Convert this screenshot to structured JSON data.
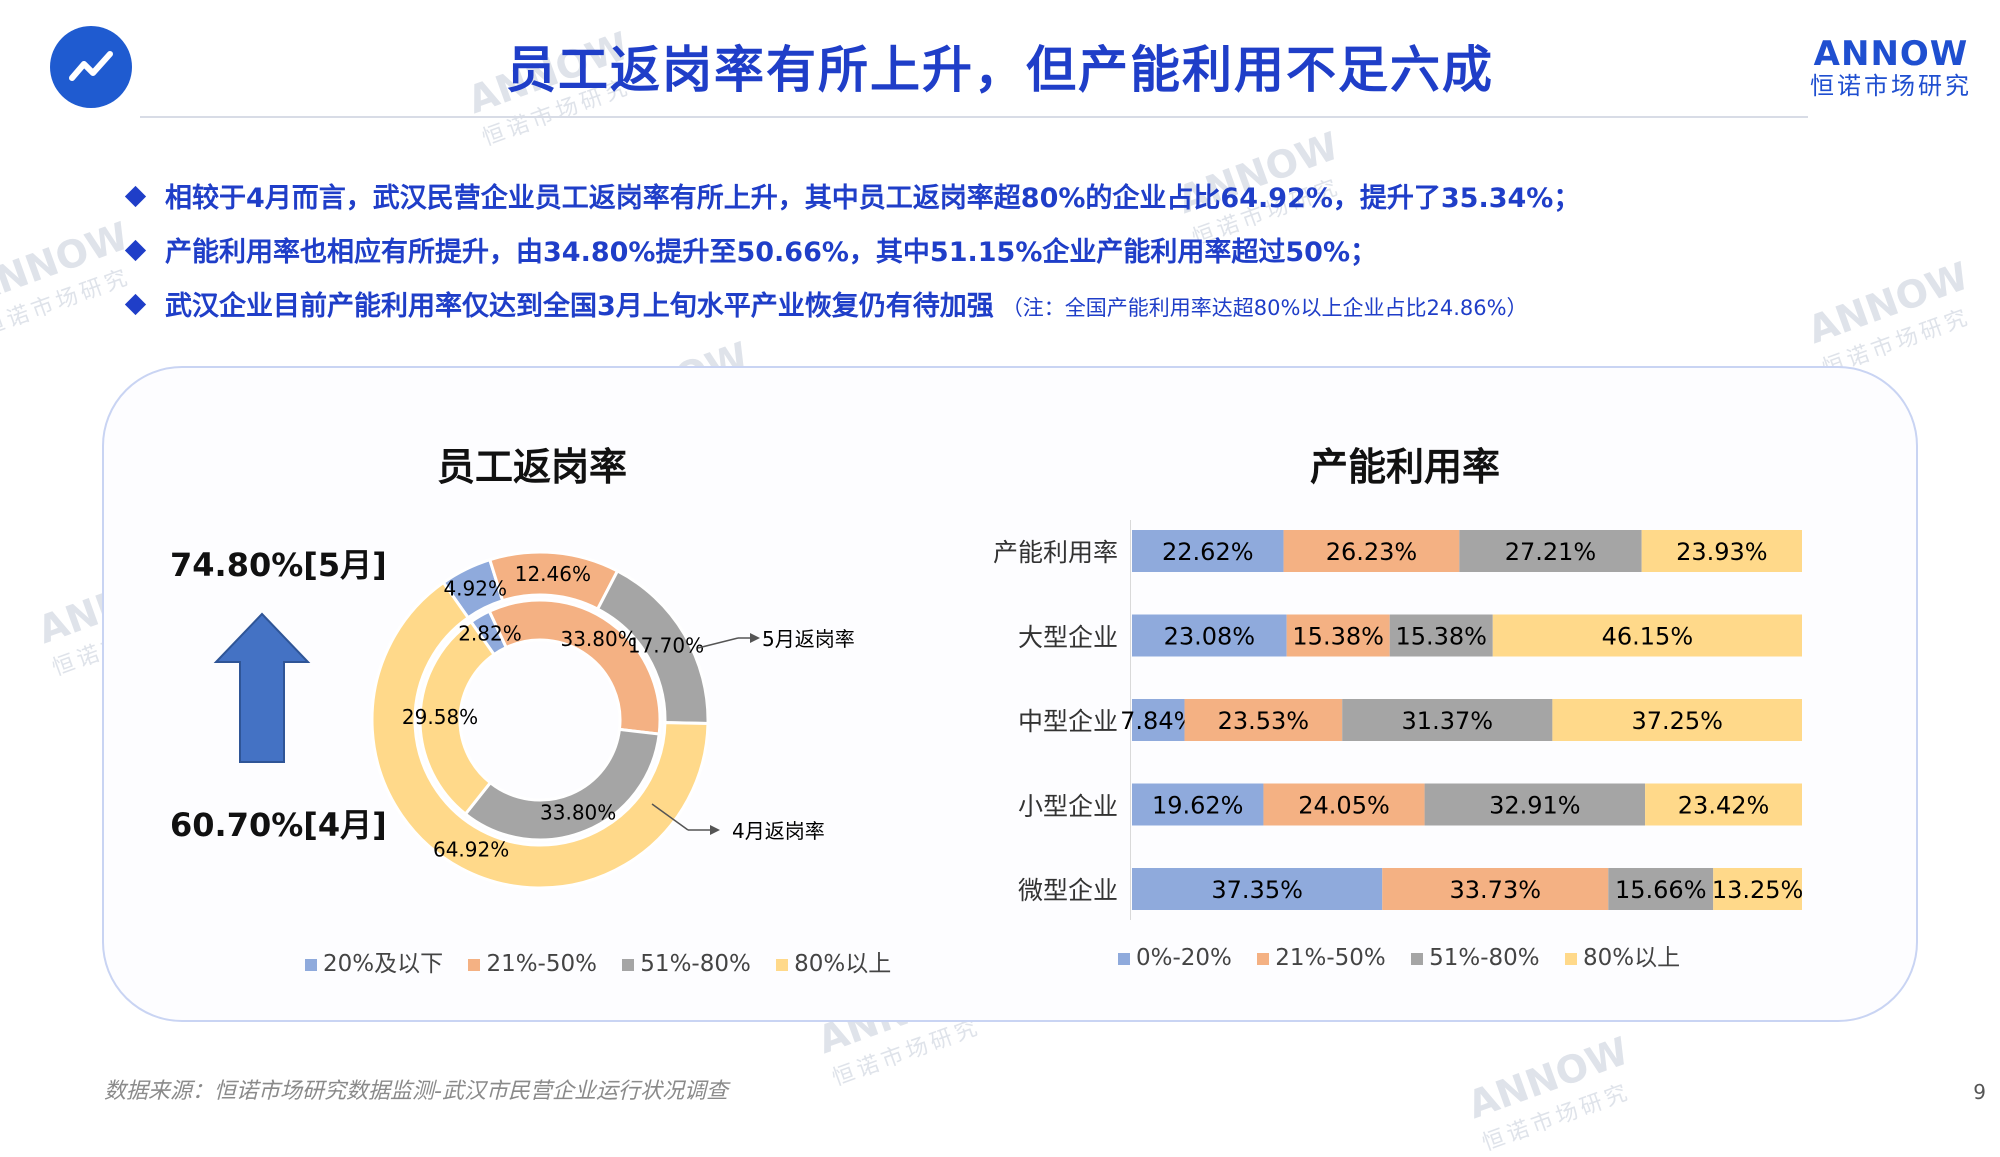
{
  "page": {
    "title": "员工返岗率有所上升，但产能利用不足六成",
    "brand_en": "ANNOW",
    "brand_cn": "恒诺市场研究",
    "page_number": "9",
    "source": "数据来源：恒诺市场研究数据监测-武汉市民营企业运行状况调查",
    "watermark_en": "ANNOW",
    "watermark_cn": "恒诺市场研究"
  },
  "bullets": [
    {
      "text": "相较于4月而言，武汉民营企业员工返岗率有所上升，其中员工返岗率超80%的企业占比64.92%，提升了35.34%；",
      "note": ""
    },
    {
      "text": "产能利用率也相应有所提升，由34.80%提升至50.66%，其中51.15%企业产能利用率超过50%；",
      "note": ""
    },
    {
      "text": "武汉企业目前产能利用率仅达到全国3月上旬水平产业恢复仍有待加强",
      "note": "（注：全国产能利用率达超80%以上企业占比24.86%）"
    }
  ],
  "colors": {
    "c1": "#8faadc",
    "c2": "#f4b183",
    "c3": "#a5a5a5",
    "c4": "#ffd98a",
    "accent": "#1f3ec8",
    "arrow": "#4472c4"
  },
  "chart_data": [
    {
      "type": "doughnut",
      "title": "员工返岗率",
      "legend": [
        "20%及以下",
        "21%-50%",
        "51%-80%",
        "80%以上"
      ],
      "series": [
        {
          "name": "5月返岗率",
          "values": [
            4.92,
            12.46,
            17.7,
            64.92
          ],
          "labels": [
            "4.92%",
            "12.46%",
            "17.70%",
            "64.92%"
          ]
        },
        {
          "name": "4月返岗率",
          "values": [
            2.82,
            33.8,
            33.8,
            29.58
          ],
          "labels": [
            "2.82%",
            "33.80%",
            "33.80%",
            "29.58%"
          ]
        }
      ],
      "annotations": {
        "may": "74.80%[5月]",
        "april": "60.70%[4月]"
      }
    },
    {
      "type": "bar",
      "stacked": "100%",
      "orientation": "horizontal",
      "title": "产能利用率",
      "categories": [
        "产能利用率",
        "大型企业",
        "中型企业",
        "小型企业",
        "微型企业"
      ],
      "legend": [
        "0%-20%",
        "21%-50%",
        "51%-80%",
        "80%以上"
      ],
      "series": [
        {
          "name": "0%-20%",
          "values": [
            22.62,
            23.08,
            7.84,
            19.62,
            37.35
          ],
          "labels": [
            "22.62%",
            "23.08%",
            "7.84%",
            "19.62%",
            "37.35%"
          ]
        },
        {
          "name": "21%-50%",
          "values": [
            26.23,
            15.38,
            23.53,
            24.05,
            33.73
          ],
          "labels": [
            "26.23%",
            "15.38%",
            "23.53%",
            "24.05%",
            "33.73%"
          ]
        },
        {
          "name": "51%-80%",
          "values": [
            27.21,
            15.38,
            31.37,
            32.91,
            15.66
          ],
          "labels": [
            "27.21%",
            "15.38%",
            "31.37%",
            "32.91%",
            "15.66%"
          ]
        },
        {
          "name": "80%以上",
          "values": [
            23.93,
            46.15,
            37.25,
            23.42,
            13.25
          ],
          "labels": [
            "23.93%",
            "46.15%",
            "37.25%",
            "23.42%",
            "13.25%"
          ]
        }
      ]
    }
  ]
}
